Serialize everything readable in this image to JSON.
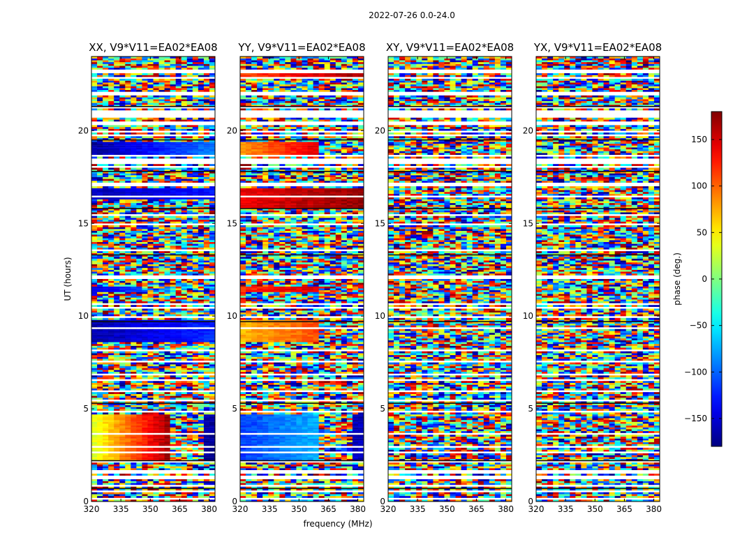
{
  "chart_data": {
    "type": "heatmap",
    "title": "2022-07-26 0.0-24.0",
    "xlabel": "frequency (MHz)",
    "ylabel": "UT (hours)",
    "xlim": [
      320,
      383
    ],
    "ylim": [
      0,
      24
    ],
    "xticks": [
      "320",
      "335",
      "350",
      "365",
      "380"
    ],
    "xtick_values": [
      320,
      335,
      350,
      365,
      380
    ],
    "yticks": [
      "0",
      "5",
      "10",
      "15",
      "20"
    ],
    "ytick_values": [
      0,
      5,
      10,
      15,
      20
    ],
    "colorbar": {
      "label": "phase (deg.)",
      "range": [
        -180,
        180
      ],
      "ticks": [
        "150",
        "100",
        "50",
        "0",
        "−50",
        "−100",
        "−150"
      ],
      "tick_values": [
        150,
        100,
        50,
        0,
        -50,
        -100,
        -150
      ],
      "colormap": "jet"
    },
    "panels": [
      {
        "title": "XX, V9*V11=EA02*EA08",
        "coherent_regions": [
          {
            "t0": 2.1,
            "t1": 4.7,
            "f0": 320,
            "f1": 361,
            "phase_start": 30,
            "phase_end": 175
          },
          {
            "t0": 2.1,
            "t1": 4.7,
            "f0": 378,
            "f1": 383,
            "phase_start": -170,
            "phase_end": -170
          },
          {
            "t0": 8.6,
            "t1": 9.8,
            "f0": 320,
            "f1": 383,
            "phase_start": -165,
            "phase_end": -120
          },
          {
            "t0": 11.3,
            "t1": 11.6,
            "f0": 320,
            "f1": 345,
            "phase_start": -150,
            "phase_end": -110
          },
          {
            "t0": 16.3,
            "t1": 16.9,
            "f0": 320,
            "f1": 383,
            "phase_start": -160,
            "phase_end": -130
          },
          {
            "t0": 18.6,
            "t1": 19.4,
            "f0": 320,
            "f1": 383,
            "phase_start": -170,
            "phase_end": -90
          }
        ]
      },
      {
        "title": "YY, V9*V11=EA02*EA08",
        "coherent_regions": [
          {
            "t0": 2.1,
            "t1": 4.7,
            "f0": 320,
            "f1": 361,
            "phase_start": -115,
            "phase_end": -70
          },
          {
            "t0": 2.1,
            "t1": 4.7,
            "f0": 378,
            "f1": 383,
            "phase_start": -160,
            "phase_end": -160
          },
          {
            "t0": 8.6,
            "t1": 9.8,
            "f0": 320,
            "f1": 361,
            "phase_start": 70,
            "phase_end": 110
          },
          {
            "t0": 11.3,
            "t1": 11.6,
            "f0": 320,
            "f1": 361,
            "phase_start": 120,
            "phase_end": 150
          },
          {
            "t0": 15.8,
            "t1": 16.9,
            "f0": 320,
            "f1": 383,
            "phase_start": 140,
            "phase_end": 175
          },
          {
            "t0": 18.6,
            "t1": 19.4,
            "f0": 320,
            "f1": 361,
            "phase_start": 80,
            "phase_end": 150
          },
          {
            "t0": 22.8,
            "t1": 23.2,
            "f0": 320,
            "f1": 383,
            "phase_start": 110,
            "phase_end": 170
          }
        ]
      },
      {
        "title": "XY, V9*V11=EA02*EA08",
        "coherent_regions": []
      },
      {
        "title": "YX, V9*V11=EA02*EA08",
        "coherent_regions": []
      }
    ]
  }
}
